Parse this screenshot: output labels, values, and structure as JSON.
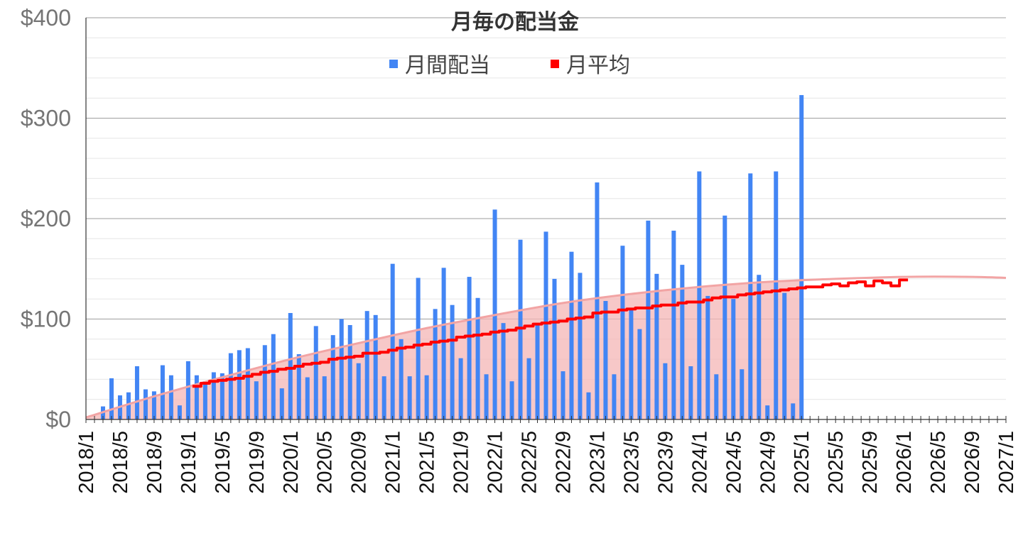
{
  "chart_data": {
    "type": "bar",
    "title": "月毎の配当金",
    "legend_position": "top-center",
    "grid": true,
    "ylim": [
      0,
      400
    ],
    "y_ticks": [
      "$0",
      "$100",
      "$200",
      "$300",
      "$400"
    ],
    "y_tick_values": [
      0,
      100,
      200,
      300,
      400
    ],
    "x_range": [
      "2018/1",
      "2027/1"
    ],
    "x_ticks": [
      "2018/1",
      "2018/5",
      "2018/9",
      "2019/1",
      "2019/5",
      "2019/9",
      "2020/1",
      "2020/5",
      "2020/9",
      "2021/1",
      "2021/5",
      "2021/9",
      "2022/1",
      "2022/5",
      "2022/9",
      "2023/1",
      "2023/5",
      "2023/9",
      "2024/1",
      "2024/5",
      "2024/9",
      "2025/1",
      "2025/5",
      "2025/9",
      "2026/1",
      "2026/5",
      "2026/9",
      "2027/1"
    ],
    "series": [
      {
        "name": "月間配当",
        "kind": "bar",
        "color": "#4285f4",
        "x_start": "2018/1",
        "values": [
          0,
          13,
          41,
          24,
          27,
          53,
          30,
          28,
          54,
          44,
          14,
          58,
          44,
          38,
          47,
          46,
          66,
          69,
          71,
          38,
          74,
          85,
          31,
          106,
          65,
          42,
          93,
          43,
          84,
          100,
          94,
          56,
          108,
          104,
          43,
          155,
          80,
          43,
          141,
          44,
          110,
          151,
          114,
          61,
          142,
          121,
          45,
          209,
          96,
          38,
          179,
          61,
          96,
          187,
          140,
          48,
          167,
          146,
          27,
          236,
          118,
          45,
          173,
          111,
          90,
          198,
          145,
          56,
          188,
          154,
          53,
          247,
          123,
          45,
          203,
          120,
          50,
          245,
          144,
          14,
          247,
          126,
          16,
          323
        ]
      },
      {
        "name": "月平均",
        "kind": "step-line",
        "color": "#ff0000",
        "x_start": "2019/1",
        "values": [
          33,
          36,
          38,
          39,
          40,
          41,
          43,
          45,
          47,
          48,
          50,
          51,
          53,
          55,
          56,
          57,
          60,
          61,
          62,
          63,
          66,
          66,
          67,
          69,
          71,
          72,
          74,
          75,
          77,
          78,
          79,
          82,
          83,
          84,
          85,
          87,
          88,
          89,
          91,
          93,
          95,
          96,
          97,
          98,
          100,
          101,
          102,
          106,
          107,
          107,
          109,
          110,
          111,
          111,
          113,
          114,
          114,
          116,
          117,
          117,
          119,
          121,
          122,
          122,
          124,
          125,
          126,
          127,
          128,
          129,
          130,
          131,
          132,
          132,
          134,
          135,
          133,
          136,
          137,
          133,
          138,
          136,
          133,
          139
        ]
      },
      {
        "kind": "trendline",
        "color": "#f2a4a4",
        "x": [
          "2018/1",
          "2018/9",
          "2019/5",
          "2020/1",
          "2020/9",
          "2021/5",
          "2022/1",
          "2022/9",
          "2023/5",
          "2024/1",
          "2024/9",
          "2025/5",
          "2026/1",
          "2026/9",
          "2027/1"
        ],
        "values": [
          2,
          23,
          42,
          60,
          76,
          91,
          104,
          116,
          125,
          132,
          137,
          140,
          142,
          142,
          141
        ]
      }
    ],
    "shaded_area": {
      "color": "#f4b6b6",
      "from": "2018/1",
      "to": "2025/1",
      "follows": "trendline"
    }
  }
}
